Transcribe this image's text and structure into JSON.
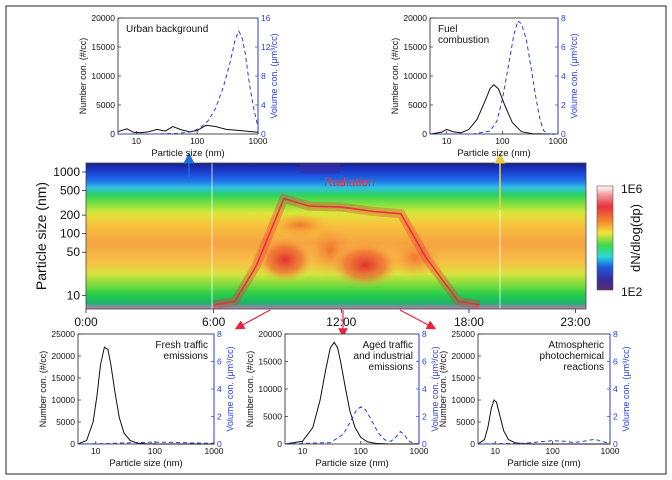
{
  "chart_data": {
    "main": {
      "type": "heatmap",
      "ylabel": "Particle size (nm)",
      "y_ticks": [
        "10",
        "50",
        "100",
        "200",
        "500",
        "1000"
      ],
      "x_ticks": [
        "0:00",
        "6:00",
        "12:00",
        "18:00",
        "23:00"
      ],
      "colorbar": {
        "label": "dN/dlog(dp)",
        "max_label": "1E6",
        "min_label": "1E2"
      },
      "annotation": "Radiation",
      "radiation_curve": [
        [
          6.0,
          7
        ],
        [
          7.0,
          8
        ],
        [
          8.0,
          30
        ],
        [
          9.3,
          370
        ],
        [
          10.5,
          280
        ],
        [
          12.0,
          270
        ],
        [
          13.5,
          230
        ],
        [
          14.8,
          210
        ],
        [
          16.0,
          40
        ],
        [
          17.5,
          8
        ],
        [
          18.5,
          7
        ]
      ],
      "colors": {
        "radiation": "#e8343a",
        "arrow_blue": "#1e6fd9",
        "arrow_yellow": "#e8c840",
        "arrow_red": "#e8243c"
      }
    },
    "insets": [
      {
        "title": "Urban background",
        "type": "line",
        "xlabel": "Particle size (nm)",
        "ylabel_left": "Number con. (#/cc)",
        "ylabel_right": "Volume con. (μm³/cc)",
        "x_ticks": [
          "10",
          "100",
          "1000"
        ],
        "left_ticks": [
          "0",
          "5000",
          "10000",
          "15000",
          "20000"
        ],
        "right_ticks": [
          "0",
          "4",
          "8",
          "12",
          "16"
        ],
        "ylim_left": [
          0,
          20000
        ],
        "ylim_right": [
          0,
          16
        ],
        "xlim": [
          5,
          1000
        ],
        "series": [
          {
            "axis": "left",
            "style": "solid",
            "x": [
              5,
              7,
              9,
              12,
              16,
              22,
              30,
              40,
              55,
              75,
              100,
              140,
              200,
              300,
              500,
              1000
            ],
            "y": [
              400,
              900,
              300,
              200,
              400,
              800,
              500,
              1300,
              700,
              400,
              600,
              1500,
              1300,
              800,
              600,
              300
            ]
          },
          {
            "axis": "right",
            "style": "dashed",
            "x": [
              5,
              20,
              50,
              80,
              110,
              150,
              200,
              270,
              350,
              420,
              480,
              540,
              620,
              720,
              850,
              1000
            ],
            "y": [
              0,
              0,
              0.1,
              0.3,
              0.8,
              1.8,
              3.5,
              6.5,
              10.0,
              13.0,
              14.2,
              13.5,
              11.0,
              7.0,
              3.5,
              1.0
            ]
          }
        ]
      },
      {
        "title": "Fuel combustion",
        "type": "line",
        "xlabel": "Particle size (nm)",
        "ylabel_left": "Number con. (#/cc)",
        "ylabel_right": "Volume con. (μm³/cc)",
        "x_ticks": [
          "10",
          "100",
          "1000"
        ],
        "left_ticks": [
          "0",
          "5000",
          "10000",
          "15000",
          "20000"
        ],
        "right_ticks": [
          "0",
          "2",
          "4",
          "6",
          "8"
        ],
        "ylim_left": [
          0,
          20000
        ],
        "ylim_right": [
          0,
          8
        ],
        "xlim": [
          5,
          1000
        ],
        "series": [
          {
            "axis": "left",
            "style": "solid",
            "x": [
              5,
              8,
              10,
              13,
              18,
              25,
              35,
              48,
              60,
              70,
              85,
              110,
              150,
              220,
              350,
              600,
              1000
            ],
            "y": [
              0,
              300,
              800,
              400,
              200,
              800,
              2500,
              5500,
              7800,
              8500,
              7800,
              5000,
              2000,
              400,
              50,
              0,
              0
            ]
          },
          {
            "axis": "right",
            "style": "dashed",
            "x": [
              5,
              30,
              60,
              80,
              100,
              130,
              160,
              190,
              220,
              270,
              330,
              400,
              480,
              560,
              700,
              1000
            ],
            "y": [
              0,
              0,
              0.2,
              0.9,
              2.4,
              4.8,
              6.8,
              7.8,
              7.6,
              6.5,
              4.5,
              2.5,
              0.9,
              0.2,
              0,
              0
            ]
          }
        ]
      },
      {
        "title": "Fresh traffic emissions",
        "type": "line",
        "xlabel": "Particle size (nm)",
        "ylabel_left": "Number con. (#/cc)",
        "ylabel_right": "Volume con. (μm³/cc)",
        "x_ticks": [
          "10",
          "100",
          "1000"
        ],
        "left_ticks": [
          "0",
          "5000",
          "10000",
          "15000",
          "20000",
          "25000"
        ],
        "right_ticks": [
          "0",
          "2",
          "4",
          "6",
          "8"
        ],
        "ylim_left": [
          0,
          25000
        ],
        "ylim_right": [
          0,
          8
        ],
        "xlim": [
          5,
          1000
        ],
        "series": [
          {
            "axis": "left",
            "style": "solid",
            "x": [
              5,
              7,
              9,
              10.5,
              12,
              14,
              16,
              18,
              21,
              25,
              30,
              38,
              50,
              70,
              100,
              200,
              1000
            ],
            "y": [
              0,
              800,
              5000,
              11000,
              18000,
              22000,
              21500,
              18000,
              12000,
              6000,
              2500,
              800,
              200,
              50,
              0,
              0,
              0
            ]
          },
          {
            "axis": "right",
            "style": "dashed",
            "x": [
              5,
              15,
              30,
              60,
              100,
              200,
              400,
              700,
              1000
            ],
            "y": [
              0,
              0.03,
              0.08,
              0.12,
              0.14,
              0.12,
              0.08,
              0.06,
              0.05
            ]
          }
        ]
      },
      {
        "title": "Aged traffic and industrial emissions",
        "type": "line",
        "xlabel": "Particle size (nm)",
        "ylabel_left": "Number con. (#/cc)",
        "ylabel_right": "Volume con. (μm³/cc)",
        "x_ticks": [
          "10",
          "100",
          "1000"
        ],
        "left_ticks": [
          "0",
          "5000",
          "10000",
          "15000",
          "20000"
        ],
        "right_ticks": [
          "0",
          "2",
          "4",
          "6",
          "8"
        ],
        "ylim_left": [
          0,
          20000
        ],
        "ylim_right": [
          0,
          8
        ],
        "xlim": [
          5,
          1000
        ],
        "series": [
          {
            "axis": "left",
            "style": "solid",
            "x": [
              5,
              10,
              15,
              20,
              25,
              30,
              35,
              40,
              45,
              55,
              65,
              80,
              100,
              130,
              180,
              300,
              1000
            ],
            "y": [
              0,
              500,
              3000,
              8000,
              13500,
              17500,
              18500,
              17500,
              15000,
              10000,
              6000,
              3000,
              1200,
              400,
              100,
              0,
              0
            ]
          },
          {
            "axis": "right",
            "style": "dashed",
            "x": [
              5,
              30,
              50,
              70,
              85,
              100,
              120,
              150,
              200,
              260,
              330,
              400,
              480,
              560,
              640,
              750,
              1000
            ],
            "y": [
              0,
              0.1,
              0.7,
              1.8,
              2.5,
              2.7,
              2.5,
              1.8,
              0.8,
              0.3,
              0.2,
              0.5,
              0.9,
              0.7,
              0.3,
              0.1,
              0
            ]
          }
        ]
      },
      {
        "title": "Atmospheric photochemical reactions",
        "type": "line",
        "xlabel": "Particle size (nm)",
        "ylabel_left": "Number con. (#/cc)",
        "ylabel_right": "Volume con. (μm³/cc)",
        "x_ticks": [
          "10",
          "100",
          "1000"
        ],
        "left_ticks": [
          "0",
          "5000",
          "10000",
          "15000",
          "20000",
          "25000"
        ],
        "right_ticks": [
          "0",
          "2",
          "4",
          "6",
          "8"
        ],
        "ylim_left": [
          0,
          25000
        ],
        "ylim_right": [
          0,
          8
        ],
        "xlim": [
          5,
          1000
        ],
        "series": [
          {
            "axis": "left",
            "style": "solid",
            "x": [
              5,
              6.5,
              7.5,
              8.5,
              9.5,
              10.5,
              12,
              14,
              17,
              22,
              30,
              45,
              80,
              200,
              1000
            ],
            "y": [
              0,
              1000,
              4000,
              8000,
              10000,
              9500,
              6500,
              3000,
              1000,
              300,
              100,
              0,
              0,
              0,
              0
            ]
          },
          {
            "axis": "right",
            "style": "dashed",
            "x": [
              5,
              30,
              60,
              100,
              160,
              220,
              300,
              400,
              550,
              700,
              1000
            ],
            "y": [
              0,
              0.05,
              0.15,
              0.25,
              0.2,
              0.12,
              0.15,
              0.25,
              0.35,
              0.2,
              0.05
            ]
          }
        ]
      }
    ]
  }
}
